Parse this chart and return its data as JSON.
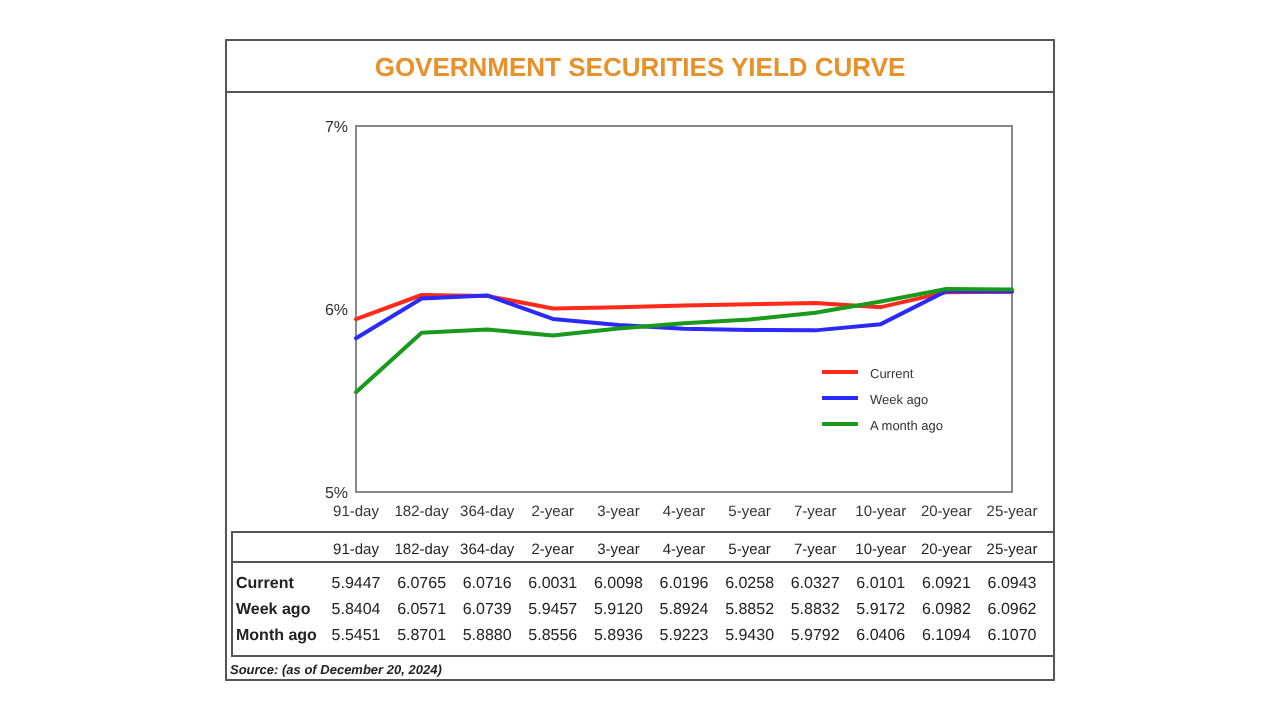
{
  "chart_data": {
    "type": "line",
    "title": "GOVERNMENT SECURITIES YIELD CURVE",
    "categories": [
      "91-day",
      "182-day",
      "364-day",
      "2-year",
      "3-year",
      "4-year",
      "5-year",
      "7-year",
      "10-year",
      "20-year",
      "25-year"
    ],
    "series": [
      {
        "name": "Current",
        "color": "#ff2a1a",
        "values": [
          5.9447,
          6.0765,
          6.0716,
          6.0031,
          6.0098,
          6.0196,
          6.0258,
          6.0327,
          6.0101,
          6.0921,
          6.0943
        ],
        "value_labels": [
          "5.9447",
          "6.0765",
          "6.0716",
          "6.0031",
          "6.0098",
          "6.0196",
          "6.0258",
          "6.0327",
          "6.0101",
          "6.0921",
          "6.0943"
        ]
      },
      {
        "name": "Week ago",
        "color": "#2a2aff",
        "values": [
          5.8404,
          6.0571,
          6.0739,
          5.9457,
          5.912,
          5.8924,
          5.8852,
          5.8832,
          5.9172,
          6.0982,
          6.0962
        ],
        "value_labels": [
          "5.8404",
          "6.0571",
          "6.0739",
          "5.9457",
          "5.9120",
          "5.8924",
          "5.8852",
          "5.8832",
          "5.9172",
          "6.0982",
          "6.0962"
        ]
      },
      {
        "name": "A month ago",
        "color": "#1a9a1a",
        "values": [
          5.5451,
          5.8701,
          5.888,
          5.8556,
          5.8936,
          5.9223,
          5.943,
          5.9792,
          6.0406,
          6.1094,
          6.107
        ],
        "value_labels": [
          "5.5451",
          "5.8701",
          "5.8880",
          "5.8556",
          "5.8936",
          "5.9223",
          "5.9430",
          "5.9792",
          "6.0406",
          "6.1094",
          "6.1070"
        ]
      }
    ],
    "ylim": [
      5,
      7
    ],
    "yticks": [
      {
        "value": 5,
        "label": "5%"
      },
      {
        "value": 6,
        "label": "6%"
      },
      {
        "value": 7,
        "label": "7%"
      }
    ],
    "legend": "bottom right",
    "annotations": [
      "Month ago",
      "Source: (as of December 20, 2024)"
    ]
  }
}
